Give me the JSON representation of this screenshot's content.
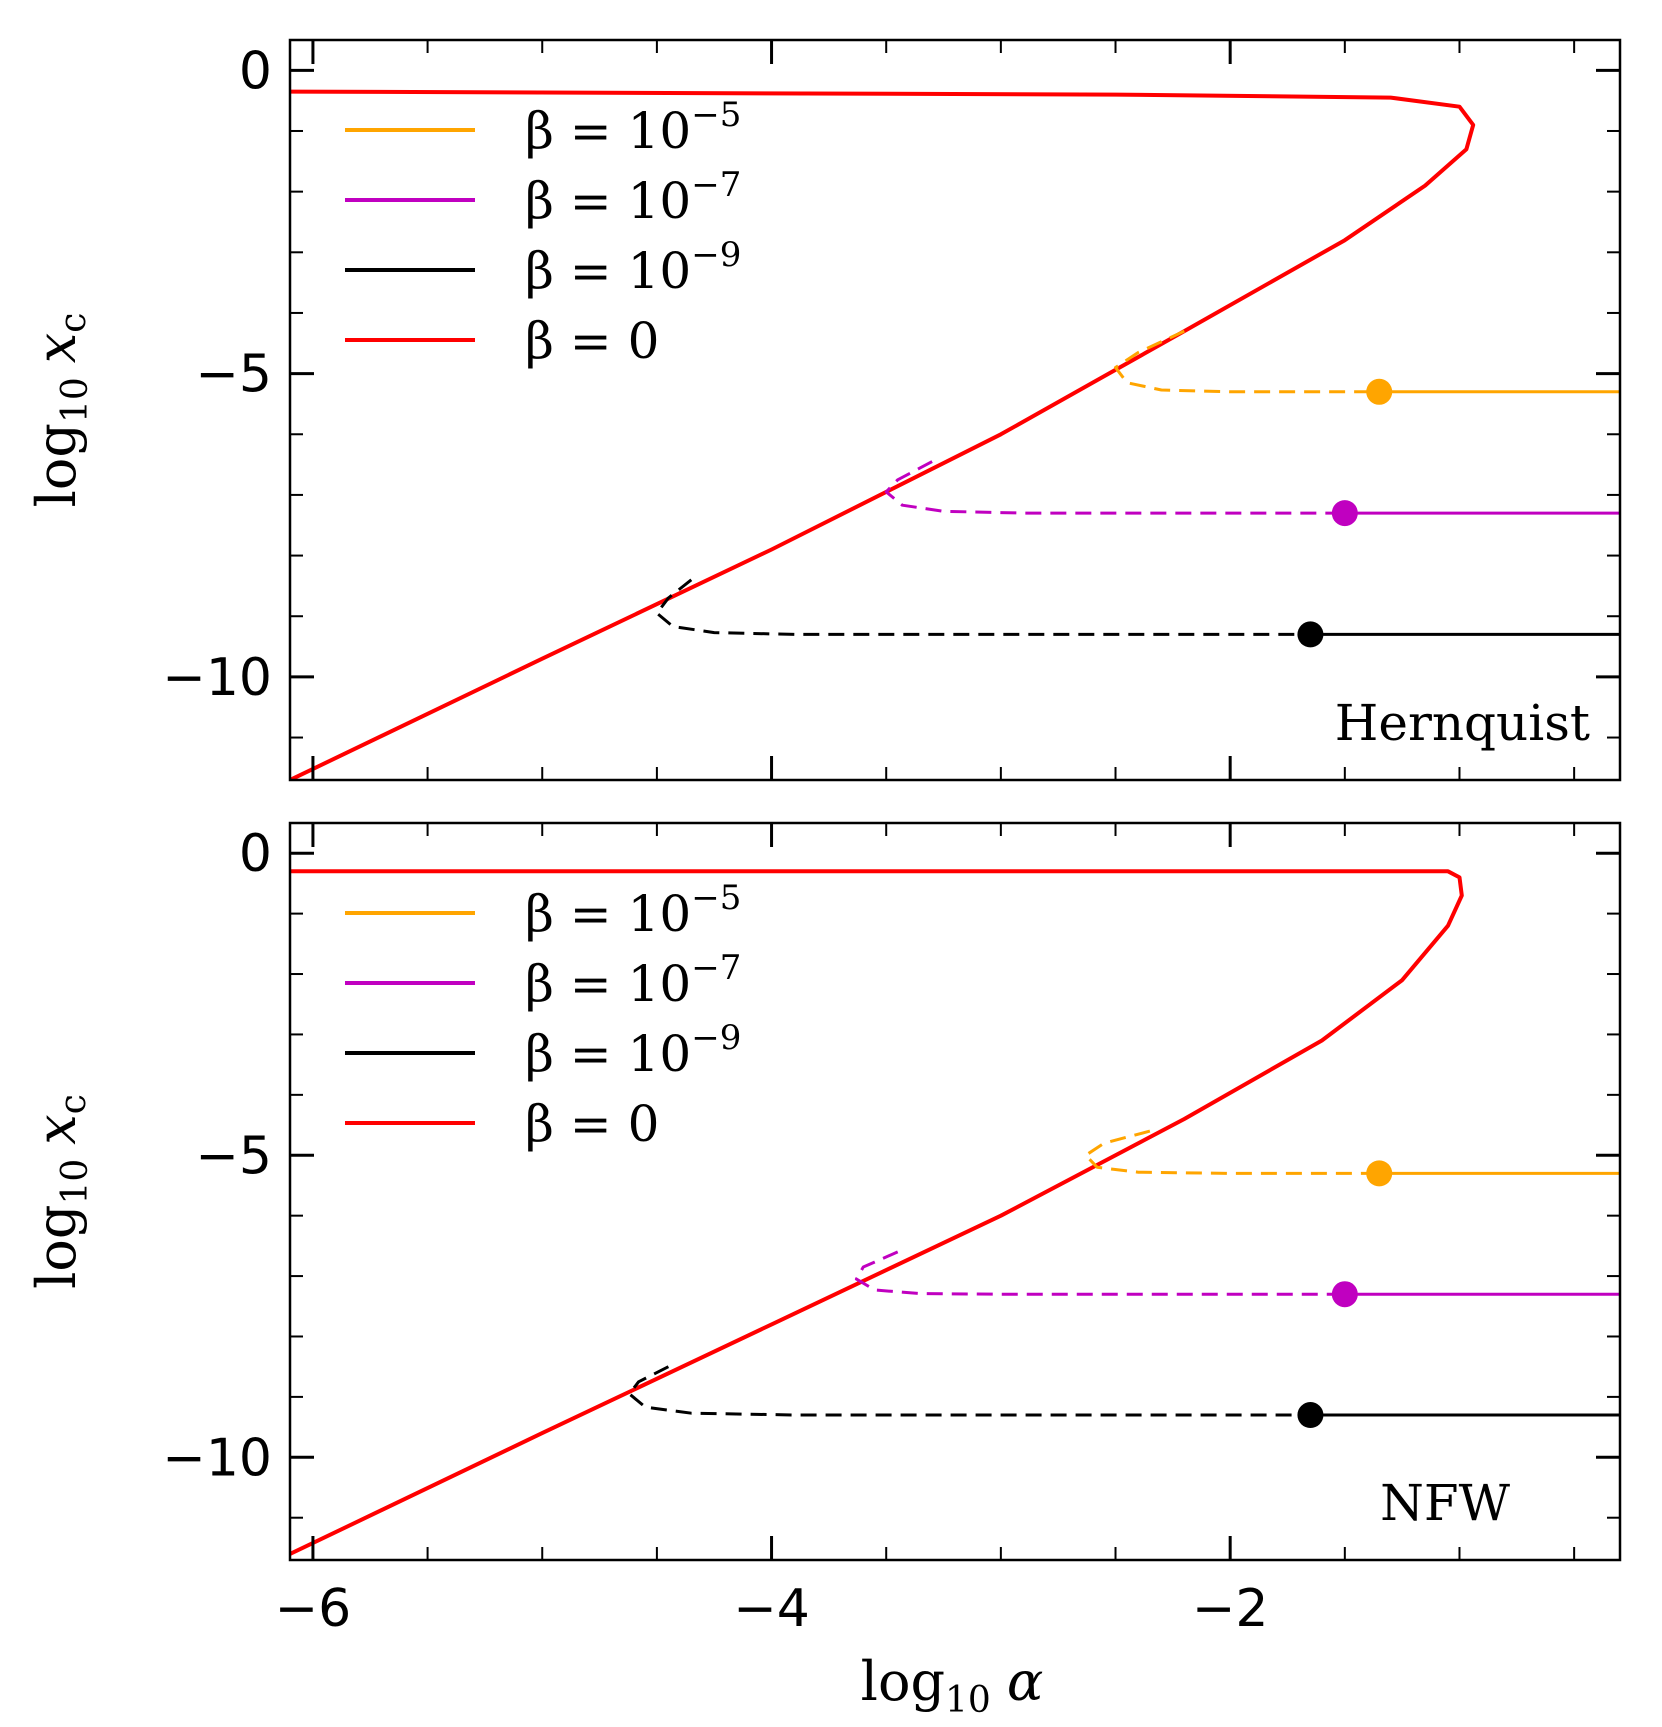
{
  "figure": {
    "xlabel_main": "log",
    "xlabel_sub": "10",
    "xlabel_var": "α",
    "ylabel_main": "log",
    "ylabel_sub": "10",
    "ylabel_var": "x",
    "ylabel_var_sub": "c"
  },
  "chart_data": [
    {
      "type": "line",
      "panel_label": "Hernquist",
      "xlim": [
        -6.1,
        -0.3
      ],
      "ylim": [
        -11.7,
        0.5
      ],
      "xticks": [
        -6,
        -4,
        -2
      ],
      "xtick_labels": [
        "−6",
        "−4",
        "−2"
      ],
      "yticks": [
        0,
        -5,
        -10
      ],
      "ytick_labels": [
        "0",
        "−5",
        "−10"
      ],
      "legend": {
        "placement": "upper-left",
        "entries": [
          {
            "base": "β = 10",
            "exp": "−5",
            "color": "#ffa500"
          },
          {
            "base": "β = 10",
            "exp": "−7",
            "color": "#c000c0"
          },
          {
            "base": "β = 10",
            "exp": "−9",
            "color": "#000000"
          },
          {
            "base": "β = 0",
            "exp": "",
            "color": "#ff0000"
          }
        ]
      },
      "series": [
        {
          "color": "#ff0000",
          "style": "solid",
          "points": [
            [
              -6.1,
              -11.7
            ],
            [
              -5.0,
              -9.7
            ],
            [
              -4.0,
              -7.9
            ],
            [
              -3.0,
              -6.0
            ],
            [
              -2.2,
              -4.3
            ],
            [
              -1.5,
              -2.8
            ],
            [
              -1.15,
              -1.9
            ],
            [
              -0.97,
              -1.3
            ],
            [
              -0.94,
              -0.9
            ],
            [
              -1.0,
              -0.6
            ],
            [
              -1.3,
              -0.45
            ],
            [
              -2.5,
              -0.4
            ],
            [
              -6.1,
              -0.35
            ]
          ]
        },
        {
          "color": "#ffa500",
          "style": "solid",
          "points": [
            [
              -1.35,
              -5.3
            ],
            [
              -0.3,
              -5.3
            ]
          ]
        },
        {
          "color": "#ffa500",
          "style": "dashed",
          "points": [
            [
              -2.2,
              -4.3
            ],
            [
              -2.4,
              -4.65
            ],
            [
              -2.5,
              -4.9
            ],
            [
              -2.45,
              -5.15
            ],
            [
              -2.3,
              -5.27
            ],
            [
              -2.0,
              -5.3
            ],
            [
              -1.35,
              -5.3
            ]
          ]
        },
        {
          "color": "#c000c0",
          "style": "solid",
          "points": [
            [
              -1.5,
              -7.3
            ],
            [
              -0.3,
              -7.3
            ]
          ]
        },
        {
          "color": "#c000c0",
          "style": "dashed",
          "points": [
            [
              -3.3,
              -6.45
            ],
            [
              -3.45,
              -6.75
            ],
            [
              -3.5,
              -6.95
            ],
            [
              -3.43,
              -7.17
            ],
            [
              -3.25,
              -7.27
            ],
            [
              -2.9,
              -7.3
            ],
            [
              -1.5,
              -7.3
            ]
          ]
        },
        {
          "color": "#000000",
          "style": "solid",
          "points": [
            [
              -1.65,
              -9.3
            ],
            [
              -0.3,
              -9.3
            ]
          ]
        },
        {
          "color": "#000000",
          "style": "dashed",
          "points": [
            [
              -4.35,
              -8.4
            ],
            [
              -4.45,
              -8.7
            ],
            [
              -4.5,
              -8.95
            ],
            [
              -4.43,
              -9.17
            ],
            [
              -4.25,
              -9.27
            ],
            [
              -3.9,
              -9.3
            ],
            [
              -1.65,
              -9.3
            ]
          ]
        }
      ],
      "markers": [
        {
          "x": -1.35,
          "y": -5.3,
          "color": "#ffa500"
        },
        {
          "x": -1.5,
          "y": -7.3,
          "color": "#c000c0"
        },
        {
          "x": -1.65,
          "y": -9.3,
          "color": "#000000"
        }
      ]
    },
    {
      "type": "line",
      "panel_label": "NFW",
      "xlim": [
        -6.1,
        -0.3
      ],
      "ylim": [
        -11.7,
        0.5
      ],
      "xticks": [
        -6,
        -4,
        -2
      ],
      "xtick_labels": [
        "−6",
        "−4",
        "−2"
      ],
      "yticks": [
        0,
        -5,
        -10
      ],
      "ytick_labels": [
        "0",
        "−5",
        "−10"
      ],
      "legend": {
        "placement": "upper-left",
        "entries": [
          {
            "base": "β = 10",
            "exp": "−5",
            "color": "#ffa500"
          },
          {
            "base": "β = 10",
            "exp": "−7",
            "color": "#c000c0"
          },
          {
            "base": "β = 10",
            "exp": "−9",
            "color": "#000000"
          },
          {
            "base": "β = 0",
            "exp": "",
            "color": "#ff0000"
          }
        ]
      },
      "series": [
        {
          "color": "#ff0000",
          "style": "solid",
          "points": [
            [
              -6.1,
              -11.6
            ],
            [
              -5.0,
              -9.6
            ],
            [
              -4.0,
              -7.8
            ],
            [
              -3.0,
              -6.0
            ],
            [
              -2.2,
              -4.4
            ],
            [
              -1.6,
              -3.1
            ],
            [
              -1.25,
              -2.1
            ],
            [
              -1.05,
              -1.2
            ],
            [
              -0.99,
              -0.7
            ],
            [
              -1.0,
              -0.4
            ],
            [
              -1.05,
              -0.3
            ],
            [
              -3.0,
              -0.3
            ],
            [
              -6.1,
              -0.3
            ]
          ]
        },
        {
          "color": "#ffa500",
          "style": "solid",
          "points": [
            [
              -1.35,
              -5.3
            ],
            [
              -0.3,
              -5.3
            ]
          ]
        },
        {
          "color": "#ffa500",
          "style": "dashed",
          "points": [
            [
              -2.35,
              -4.6
            ],
            [
              -2.55,
              -4.8
            ],
            [
              -2.63,
              -5.0
            ],
            [
              -2.58,
              -5.2
            ],
            [
              -2.4,
              -5.28
            ],
            [
              -2.0,
              -5.3
            ],
            [
              -1.35,
              -5.3
            ]
          ]
        },
        {
          "color": "#c000c0",
          "style": "solid",
          "points": [
            [
              -1.5,
              -7.3
            ],
            [
              -0.3,
              -7.3
            ]
          ]
        },
        {
          "color": "#c000c0",
          "style": "dashed",
          "points": [
            [
              -3.45,
              -6.6
            ],
            [
              -3.6,
              -6.85
            ],
            [
              -3.63,
              -7.05
            ],
            [
              -3.55,
              -7.23
            ],
            [
              -3.35,
              -7.29
            ],
            [
              -3.0,
              -7.3
            ],
            [
              -1.5,
              -7.3
            ]
          ]
        },
        {
          "color": "#000000",
          "style": "solid",
          "points": [
            [
              -1.65,
              -9.3
            ],
            [
              -0.3,
              -9.3
            ]
          ]
        },
        {
          "color": "#000000",
          "style": "dashed",
          "points": [
            [
              -4.45,
              -8.5
            ],
            [
              -4.58,
              -8.75
            ],
            [
              -4.62,
              -8.95
            ],
            [
              -4.55,
              -9.17
            ],
            [
              -4.35,
              -9.27
            ],
            [
              -3.9,
              -9.3
            ],
            [
              -1.65,
              -9.3
            ]
          ]
        }
      ],
      "markers": [
        {
          "x": -1.35,
          "y": -5.3,
          "color": "#ffa500"
        },
        {
          "x": -1.5,
          "y": -7.3,
          "color": "#c000c0"
        },
        {
          "x": -1.65,
          "y": -9.3,
          "color": "#000000"
        }
      ]
    }
  ]
}
